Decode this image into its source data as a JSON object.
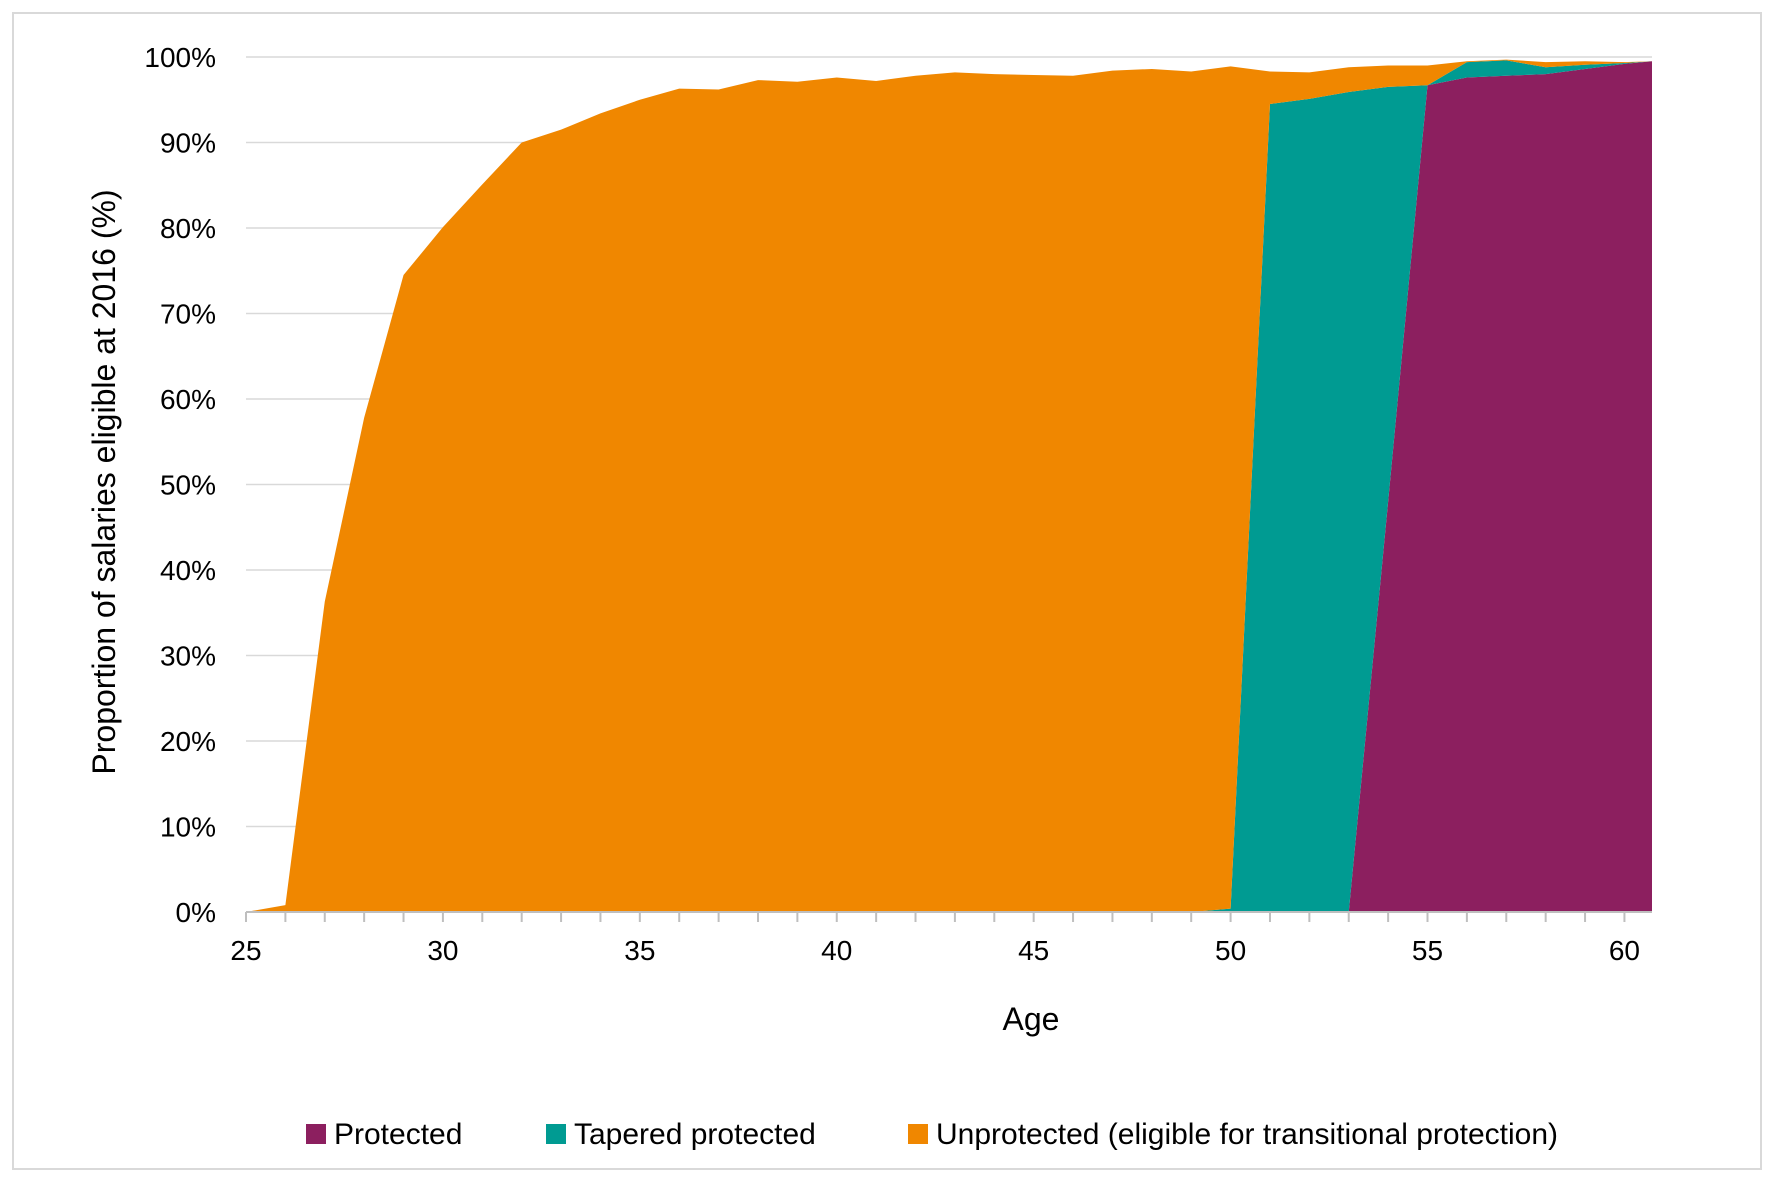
{
  "chart_data": {
    "type": "area",
    "stacked": true,
    "xlabel": "Age",
    "ylabel": "Proportion of salaries eligible at 2016 (%)",
    "xlim": [
      25,
      60.7
    ],
    "ylim": [
      0,
      100
    ],
    "x_ticks": [
      25,
      30,
      35,
      40,
      45,
      50,
      55,
      60
    ],
    "x_tick_labels": [
      "25",
      "30",
      "35",
      "40",
      "45",
      "50",
      "55",
      "60"
    ],
    "y_ticks": [
      0,
      10,
      20,
      30,
      40,
      50,
      60,
      70,
      80,
      90,
      100
    ],
    "y_tick_labels": [
      "0%",
      "10%",
      "20%",
      "30%",
      "40%",
      "50%",
      "60%",
      "70%",
      "80%",
      "90%",
      "100%"
    ],
    "grid": true,
    "legend_position": "bottom",
    "x": [
      25,
      26,
      27,
      28,
      29,
      30,
      31,
      32,
      33,
      34,
      35,
      36,
      37,
      38,
      39,
      40,
      41,
      42,
      43,
      44,
      45,
      46,
      47,
      48,
      49,
      50,
      51,
      52,
      53,
      54,
      55,
      56,
      57,
      58,
      59,
      60,
      60.7
    ],
    "series": [
      {
        "name": "Protected",
        "color": "#8c1f5f",
        "values": [
          0,
          0,
          0,
          0,
          0,
          0,
          0,
          0,
          0,
          0,
          0,
          0,
          0,
          0,
          0,
          0,
          0,
          0,
          0,
          0,
          0,
          0,
          0,
          0,
          0,
          0,
          0,
          0,
          0,
          48,
          96.7,
          97.6,
          97.8,
          98,
          98.6,
          99.2,
          99.5
        ]
      },
      {
        "name": "Tapered protected",
        "color": "#009b92",
        "values": [
          0,
          0,
          0,
          0,
          0,
          0,
          0,
          0,
          0,
          0,
          0,
          0,
          0,
          0,
          0,
          0,
          0,
          0,
          0,
          0,
          0,
          0,
          0,
          0,
          0,
          0.4,
          94.5,
          95.1,
          95.9,
          48.5,
          0,
          1.8,
          1.8,
          0.8,
          0.5,
          0.1,
          0
        ]
      },
      {
        "name": "Unprotected (eligible for transitional protection)",
        "color": "#f08700",
        "values": [
          0,
          0.8,
          36.3,
          57.8,
          74.5,
          80.1,
          85.1,
          90,
          91.5,
          93.4,
          95,
          96.3,
          96.2,
          97.3,
          97.1,
          97.6,
          97.2,
          97.8,
          98.2,
          98,
          97.9,
          97.8,
          98.4,
          98.6,
          98.3,
          98.5,
          3.8,
          3.1,
          2.9,
          2.5,
          2.3,
          0.1,
          0.1,
          0.6,
          0.4,
          0.1,
          0
        ]
      }
    ]
  }
}
